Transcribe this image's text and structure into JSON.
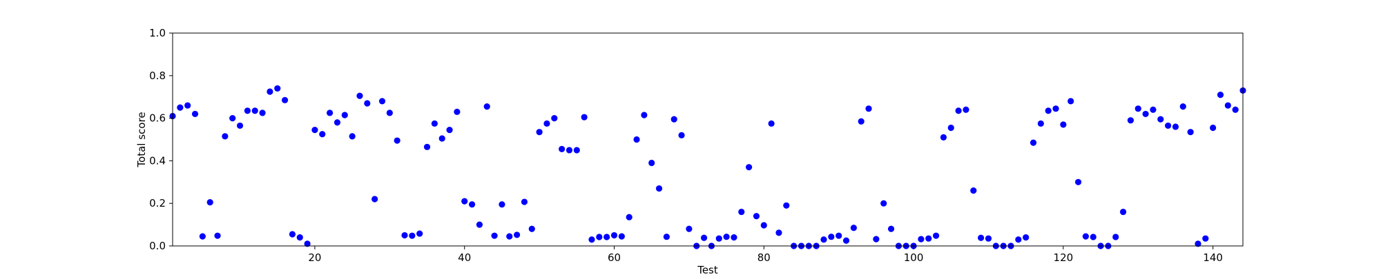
{
  "chart_data": {
    "type": "scatter",
    "xlabel": "Test",
    "ylabel": "Total score",
    "xlim": [
      1,
      144
    ],
    "ylim": [
      0,
      1.0
    ],
    "xticks": [
      20,
      40,
      60,
      80,
      100,
      120,
      140
    ],
    "yticks": [
      0.0,
      0.2,
      0.4,
      0.6,
      0.8,
      1.0
    ],
    "xtick_labels": [
      "20",
      "40",
      "60",
      "80",
      "100",
      "120",
      "140"
    ],
    "ytick_labels": [
      "0.0",
      "0.2",
      "0.4",
      "0.6",
      "0.8",
      "1.0"
    ],
    "grid": false,
    "marker_color": "#0000ff",
    "x": [
      1,
      2,
      3,
      4,
      5,
      6,
      7,
      8,
      9,
      10,
      11,
      12,
      13,
      14,
      15,
      16,
      17,
      18,
      19,
      20,
      21,
      22,
      23,
      24,
      25,
      26,
      27,
      28,
      29,
      30,
      31,
      32,
      33,
      34,
      35,
      36,
      37,
      38,
      39,
      40,
      41,
      42,
      43,
      44,
      45,
      46,
      47,
      48,
      49,
      50,
      51,
      52,
      53,
      54,
      55,
      56,
      57,
      58,
      59,
      60,
      61,
      62,
      63,
      64,
      65,
      66,
      67,
      68,
      69,
      70,
      71,
      72,
      73,
      74,
      75,
      76,
      77,
      78,
      79,
      80,
      81,
      82,
      83,
      84,
      85,
      86,
      87,
      88,
      89,
      90,
      91,
      92,
      93,
      94,
      95,
      96,
      97,
      98,
      99,
      100,
      101,
      102,
      103,
      104,
      105,
      106,
      107,
      108,
      109,
      110,
      111,
      112,
      113,
      114,
      115,
      116,
      117,
      118,
      119,
      120,
      121,
      122,
      123,
      124,
      125,
      126,
      127,
      128,
      129,
      130,
      131,
      132,
      133,
      134,
      135,
      136,
      137,
      138,
      139,
      140,
      141,
      142,
      143,
      144
    ],
    "y": [
      0.61,
      0.65,
      0.66,
      0.62,
      0.045,
      0.205,
      0.048,
      0.515,
      0.6,
      0.565,
      0.635,
      0.635,
      0.625,
      0.725,
      0.74,
      0.685,
      0.055,
      0.04,
      0.01,
      0.545,
      0.525,
      0.625,
      0.58,
      0.615,
      0.515,
      0.705,
      0.67,
      0.22,
      0.68,
      0.625,
      0.495,
      0.05,
      0.048,
      0.058,
      0.465,
      0.575,
      0.505,
      0.545,
      0.63,
      0.21,
      0.195,
      0.1,
      0.655,
      0.048,
      0.195,
      0.045,
      0.052,
      0.207,
      0.08,
      0.535,
      0.575,
      0.6,
      0.455,
      0.45,
      0.45,
      0.605,
      0.03,
      0.042,
      0.042,
      0.05,
      0.045,
      0.135,
      0.5,
      0.615,
      0.39,
      0.27,
      0.043,
      0.595,
      0.52,
      0.08,
      0.0,
      0.038,
      0.0,
      0.035,
      0.043,
      0.04,
      0.16,
      0.37,
      0.14,
      0.097,
      0.575,
      0.062,
      0.19,
      0.0,
      0.0,
      0.0,
      0.0,
      0.03,
      0.043,
      0.048,
      0.025,
      0.085,
      0.585,
      0.645,
      0.032,
      0.2,
      0.08,
      0.0,
      0.0,
      0.0,
      0.032,
      0.035,
      0.048,
      0.51,
      0.555,
      0.635,
      0.64,
      0.26,
      0.038,
      0.035,
      0.0,
      0.0,
      0.0,
      0.03,
      0.04,
      0.485,
      0.575,
      0.635,
      0.645,
      0.57,
      0.68,
      0.3,
      0.045,
      0.042,
      0.0,
      0.0,
      0.042,
      0.16,
      0.59,
      0.645,
      0.62,
      0.64,
      0.595,
      0.565,
      0.56,
      0.655,
      0.535,
      0.01,
      0.035,
      0.555,
      0.71,
      0.66,
      0.64,
      0.73
    ]
  }
}
